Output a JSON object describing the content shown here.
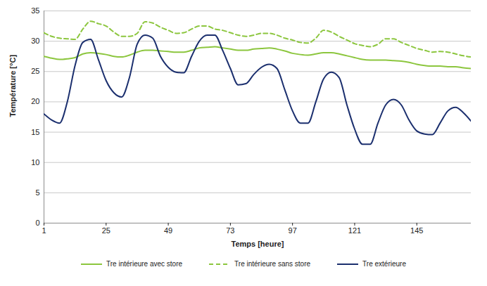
{
  "chart_data": {
    "type": "line",
    "x_label": "Temps [heure]",
    "y_label": "Température [°C]",
    "x": [
      1,
      4,
      7,
      10,
      13,
      16,
      19,
      22,
      25,
      28,
      31,
      34,
      37,
      40,
      43,
      46,
      49,
      52,
      55,
      58,
      61,
      64,
      67,
      70,
      73,
      76,
      79,
      82,
      85,
      88,
      91,
      94,
      97,
      100,
      103,
      106,
      109,
      112,
      115,
      118,
      121,
      124,
      127,
      130,
      133,
      136,
      139,
      142,
      145,
      148,
      151,
      154,
      157,
      160,
      163,
      166
    ],
    "xlim": [
      1,
      166
    ],
    "xticks": [
      1,
      25,
      49,
      73,
      97,
      121,
      145
    ],
    "ylim": [
      0,
      35
    ],
    "yticks": [
      0,
      5,
      10,
      15,
      20,
      25,
      30,
      35
    ],
    "grid": true,
    "legend": "bottom",
    "series": [
      {
        "name": "Tre intérieure avec store",
        "color": "#8cc63e",
        "line_style": "solid",
        "values": [
          27.5,
          27.2,
          27.0,
          27.1,
          27.3,
          27.9,
          28.1,
          28.0,
          27.8,
          27.5,
          27.4,
          27.7,
          28.2,
          28.5,
          28.5,
          28.4,
          28.3,
          28.2,
          28.2,
          28.5,
          28.9,
          29.0,
          29.1,
          28.9,
          28.7,
          28.5,
          28.5,
          28.7,
          28.8,
          28.9,
          28.7,
          28.4,
          28.0,
          27.8,
          27.7,
          27.9,
          28.1,
          28.1,
          27.9,
          27.6,
          27.3,
          27.0,
          26.9,
          26.9,
          26.9,
          26.8,
          26.7,
          26.5,
          26.2,
          26.0,
          25.9,
          25.9,
          25.8,
          25.8,
          25.6,
          25.5
        ]
      },
      {
        "name": "Tre intérieure sans store",
        "color": "#8cc63e",
        "line_style": "dashed",
        "values": [
          31.4,
          30.8,
          30.5,
          30.4,
          30.3,
          32.0,
          33.3,
          32.9,
          32.5,
          31.5,
          30.8,
          30.8,
          31.3,
          33.2,
          33.0,
          32.3,
          31.8,
          31.3,
          31.4,
          32.0,
          32.5,
          32.5,
          32.0,
          31.8,
          31.4,
          31.0,
          30.8,
          31.0,
          31.3,
          31.3,
          31.0,
          30.5,
          30.2,
          29.8,
          29.7,
          30.5,
          31.8,
          31.5,
          30.8,
          30.2,
          29.6,
          29.3,
          29.1,
          29.5,
          30.4,
          30.4,
          29.8,
          29.3,
          28.8,
          28.5,
          28.2,
          28.3,
          28.2,
          27.9,
          27.6,
          27.4
        ]
      },
      {
        "name": "Tre extérieure",
        "color": "#1b2f6e",
        "line_style": "solid",
        "values": [
          18.0,
          17.0,
          16.5,
          20.0,
          26.0,
          29.8,
          30.3,
          27.0,
          23.5,
          21.5,
          20.8,
          24.0,
          29.5,
          31.0,
          30.5,
          27.5,
          25.7,
          24.9,
          24.8,
          27.5,
          30.0,
          31.0,
          31.0,
          28.5,
          25.5,
          22.8,
          23.0,
          24.5,
          25.7,
          26.2,
          25.5,
          22.0,
          18.5,
          16.5,
          16.5,
          20.0,
          23.8,
          24.9,
          24.0,
          19.5,
          15.5,
          13.0,
          13.0,
          16.5,
          19.5,
          20.4,
          19.5,
          17.0,
          15.2,
          14.7,
          14.6,
          16.5,
          18.5,
          19.1,
          18.2,
          16.8
        ]
      }
    ]
  }
}
